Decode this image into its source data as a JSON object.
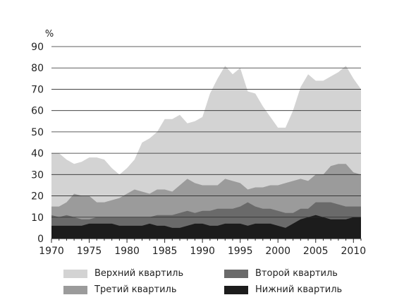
{
  "chart_data": {
    "type": "area",
    "y_unit_label": "%",
    "ylim": [
      0,
      90
    ],
    "xlim": [
      1970,
      2011
    ],
    "y_ticks": [
      0,
      10,
      20,
      30,
      40,
      50,
      60,
      70,
      80,
      90
    ],
    "x_ticks": [
      1970,
      1975,
      1980,
      1985,
      1990,
      1995,
      2000,
      2005,
      2010
    ],
    "grid": true,
    "legend_position": "bottom",
    "x": [
      1970,
      1971,
      1972,
      1973,
      1974,
      1975,
      1976,
      1977,
      1978,
      1979,
      1980,
      1981,
      1982,
      1983,
      1984,
      1985,
      1986,
      1987,
      1988,
      1989,
      1990,
      1991,
      1992,
      1993,
      1994,
      1995,
      1996,
      1997,
      1998,
      1999,
      2000,
      2001,
      2002,
      2003,
      2004,
      2005,
      2006,
      2007,
      2008,
      2009,
      2010,
      2011
    ],
    "series": [
      {
        "name": "Верхний квартиль",
        "color": "#d3d3d3",
        "values": [
          40,
          40,
          37,
          35,
          36,
          38,
          38,
          37,
          33,
          30,
          33,
          37,
          45,
          47,
          50,
          56,
          56,
          58,
          54,
          55,
          57,
          68,
          75,
          81,
          77,
          80,
          69,
          68,
          62,
          57,
          52,
          52,
          60,
          71,
          77,
          74,
          74,
          76,
          78,
          81,
          75,
          70
        ]
      },
      {
        "name": "Третий квартиль",
        "color": "#9b9b9b",
        "values": [
          15,
          15,
          17,
          21,
          20,
          20,
          17,
          17,
          18,
          19,
          21,
          23,
          22,
          21,
          23,
          23,
          22,
          25,
          28,
          26,
          25,
          25,
          25,
          28,
          27,
          26,
          23,
          24,
          24,
          25,
          25,
          26,
          27,
          28,
          27,
          30,
          30,
          34,
          35,
          35,
          31,
          30
        ]
      },
      {
        "name": "Второй квартиль",
        "color": "#6a6a6a",
        "values": [
          11,
          10,
          11,
          10,
          9,
          9,
          10,
          10,
          10,
          10,
          10,
          10,
          10,
          10,
          11,
          11,
          11,
          12,
          13,
          12,
          13,
          13,
          14,
          14,
          14,
          15,
          17,
          15,
          14,
          14,
          13,
          12,
          12,
          14,
          14,
          17,
          17,
          17,
          16,
          15,
          15,
          15
        ]
      },
      {
        "name": "Нижний квартиль",
        "color": "#1c1c1c",
        "values": [
          6,
          6,
          6,
          6,
          6,
          7,
          7,
          7,
          7,
          6,
          6,
          6,
          6,
          7,
          6,
          6,
          5,
          5,
          6,
          7,
          7,
          6,
          6,
          7,
          7,
          7,
          6,
          7,
          7,
          7,
          6,
          5,
          7,
          9,
          10,
          11,
          10,
          9,
          9,
          9,
          10,
          10
        ]
      }
    ]
  }
}
